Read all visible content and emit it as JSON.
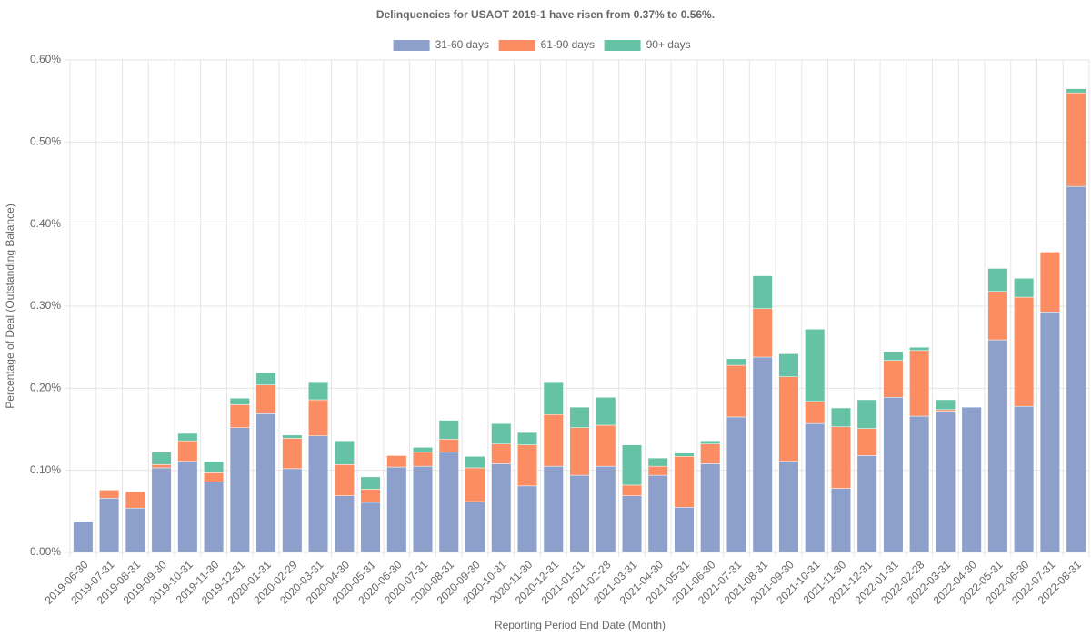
{
  "chart_data": {
    "type": "stacked_bar",
    "title": "Delinquencies for USAOT 2019-1 have risen from 0.37% to 0.56%.",
    "x_label": "Reporting Period End Date (Month)",
    "y_label": "Percentage of Deal (Outstanding Balance)",
    "categories": [
      "2019-06-30",
      "2019-07-31",
      "2019-08-31",
      "2019-09-30",
      "2019-10-31",
      "2019-11-30",
      "2019-12-31",
      "2020-01-31",
      "2020-02-29",
      "2020-03-31",
      "2020-04-30",
      "2020-05-31",
      "2020-06-30",
      "2020-07-31",
      "2020-08-31",
      "2020-09-30",
      "2020-10-31",
      "2020-11-30",
      "2020-12-31",
      "2021-01-31",
      "2021-02-28",
      "2021-03-31",
      "2021-04-30",
      "2021-05-31",
      "2021-06-30",
      "2021-07-31",
      "2021-08-31",
      "2021-09-30",
      "2021-10-31",
      "2021-11-30",
      "2021-12-31",
      "2022-01-31",
      "2022-02-28",
      "2022-03-31",
      "2022-04-30",
      "2022-05-31",
      "2022-06-30",
      "2022-07-31",
      "2022-08-31"
    ],
    "series": [
      {
        "name": "31-60 days",
        "color": "#8da0cb",
        "values": [
          0.038,
          0.066,
          0.054,
          0.103,
          0.111,
          0.086,
          0.152,
          0.169,
          0.102,
          0.142,
          0.069,
          0.061,
          0.104,
          0.105,
          0.122,
          0.062,
          0.108,
          0.081,
          0.105,
          0.094,
          0.105,
          0.069,
          0.094,
          0.055,
          0.108,
          0.165,
          0.238,
          0.111,
          0.157,
          0.078,
          0.118,
          0.189,
          0.166,
          0.172,
          0.177,
          0.259,
          0.178,
          0.293,
          0.446
        ]
      },
      {
        "name": "61-90 days",
        "color": "#fc8d62",
        "values": [
          0,
          0.01,
          0.02,
          0.004,
          0.025,
          0.011,
          0.028,
          0.035,
          0.037,
          0.044,
          0.038,
          0.016,
          0.014,
          0.017,
          0.016,
          0.041,
          0.024,
          0.05,
          0.063,
          0.058,
          0.05,
          0.013,
          0.011,
          0.062,
          0.024,
          0.063,
          0.059,
          0.103,
          0.027,
          0.075,
          0.033,
          0.045,
          0.08,
          0.002,
          0,
          0.059,
          0.133,
          0.073,
          0.114
        ]
      },
      {
        "name": "90+ days",
        "color": "#66c2a5",
        "values": [
          0,
          0,
          0,
          0.015,
          0.009,
          0.014,
          0.008,
          0.015,
          0.004,
          0.022,
          0.029,
          0.015,
          0,
          0.006,
          0.023,
          0.014,
          0.025,
          0.015,
          0.04,
          0.025,
          0.034,
          0.049,
          0.01,
          0.004,
          0.004,
          0.008,
          0.04,
          0.028,
          0.088,
          0.023,
          0.035,
          0.011,
          0.004,
          0.012,
          0,
          0.028,
          0.023,
          0,
          0.005
        ]
      }
    ],
    "ylim": [
      0,
      0.6
    ],
    "yticks": [
      {
        "value": 0,
        "label": "0.00%"
      },
      {
        "value": 0.1,
        "label": "0.10%"
      },
      {
        "value": 0.2,
        "label": "0.20%"
      },
      {
        "value": 0.3,
        "label": "0.30%"
      },
      {
        "value": 0.4,
        "label": "0.40%"
      },
      {
        "value": 0.5,
        "label": "0.50%"
      },
      {
        "value": 0.6,
        "label": "0.60%"
      }
    ],
    "grid": true,
    "legend": "top"
  }
}
